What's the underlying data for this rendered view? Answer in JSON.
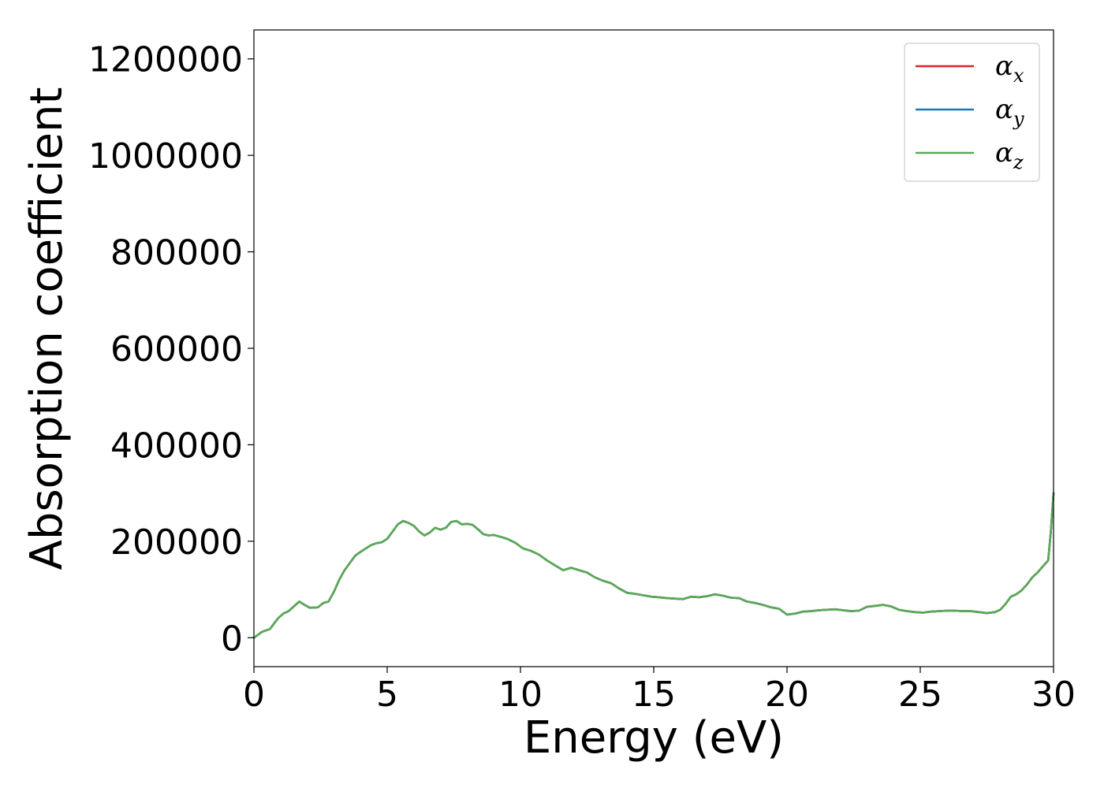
{
  "chart_data": {
    "type": "line",
    "xlabel": "Energy (eV)",
    "ylabel": "Absorption coefficient",
    "xlim": [
      0,
      30
    ],
    "ylim": [
      -60000,
      1260000
    ],
    "x_ticks": [
      0,
      5,
      10,
      15,
      20,
      25,
      30
    ],
    "x_tick_labels": [
      "0",
      "5",
      "10",
      "15",
      "20",
      "25",
      "30"
    ],
    "y_ticks": [
      0,
      200000,
      400000,
      600000,
      800000,
      1000000,
      1200000
    ],
    "y_tick_labels": [
      "0",
      "200000",
      "400000",
      "600000",
      "800000",
      "1000000",
      "1200000"
    ],
    "grid": false,
    "legend_position": "top-right",
    "x": [
      0,
      0.3,
      0.6,
      0.9,
      1.1,
      1.3,
      1.5,
      1.7,
      1.9,
      2.1,
      2.4,
      2.6,
      2.8,
      3.0,
      3.2,
      3.4,
      3.6,
      3.8,
      4.0,
      4.2,
      4.4,
      4.6,
      4.8,
      5.0,
      5.2,
      5.4,
      5.6,
      5.8,
      6.0,
      6.2,
      6.4,
      6.6,
      6.8,
      7.0,
      7.2,
      7.4,
      7.6,
      7.8,
      8.0,
      8.2,
      8.4,
      8.6,
      8.8,
      9.0,
      9.2,
      9.5,
      9.8,
      10.1,
      10.4,
      10.7,
      11.0,
      11.3,
      11.6,
      11.9,
      12.2,
      12.5,
      12.8,
      13.1,
      13.4,
      13.7,
      14.0,
      14.3,
      14.6,
      14.9,
      15.2,
      15.5,
      15.8,
      16.1,
      16.4,
      16.7,
      17.0,
      17.3,
      17.6,
      17.9,
      18.2,
      18.5,
      18.8,
      19.1,
      19.4,
      19.7,
      20.0,
      20.3,
      20.6,
      20.9,
      21.2,
      21.5,
      21.8,
      22.1,
      22.4,
      22.7,
      23.0,
      23.3,
      23.6,
      23.9,
      24.2,
      24.5,
      24.8,
      25.1,
      25.4,
      25.7,
      26.0,
      26.3,
      26.6,
      26.9,
      27.2,
      27.5,
      27.8,
      28.0,
      28.2,
      28.4,
      28.6,
      28.8,
      29.0,
      29.2,
      29.4,
      29.6,
      29.8,
      29.9,
      30.0
    ],
    "series": [
      {
        "name": "αx",
        "color": "#d62728",
        "y": [
          0,
          12000,
          18000,
          40000,
          50000,
          55000,
          65000,
          75000,
          68000,
          62000,
          63000,
          72000,
          75000,
          95000,
          120000,
          140000,
          155000,
          170000,
          178000,
          185000,
          192000,
          196000,
          198000,
          205000,
          220000,
          235000,
          242000,
          238000,
          232000,
          220000,
          212000,
          218000,
          228000,
          224000,
          228000,
          240000,
          242000,
          235000,
          236000,
          234000,
          225000,
          215000,
          212000,
          213000,
          210000,
          205000,
          197000,
          185000,
          180000,
          172000,
          160000,
          150000,
          140000,
          145000,
          140000,
          135000,
          125000,
          118000,
          113000,
          102000,
          93000,
          91000,
          88000,
          85000,
          84000,
          82000,
          81000,
          80000,
          85000,
          84000,
          86000,
          90000,
          87000,
          83000,
          82000,
          75000,
          72000,
          68000,
          63000,
          60000,
          48000,
          50000,
          54000,
          55000,
          57000,
          58000,
          59000,
          57000,
          55000,
          56000,
          64000,
          66000,
          68000,
          65000,
          58000,
          55000,
          53000,
          52000,
          54000,
          55000,
          56000,
          56000,
          55000,
          55000,
          53000,
          51000,
          53000,
          58000,
          70000,
          85000,
          90000,
          98000,
          110000,
          125000,
          135000,
          148000,
          160000,
          220000,
          300000
        ]
      },
      {
        "name": "αy",
        "color": "#1f77b4",
        "y": [
          0,
          12000,
          18000,
          40000,
          50000,
          55000,
          65000,
          75000,
          68000,
          62000,
          63000,
          72000,
          75000,
          95000,
          120000,
          140000,
          155000,
          170000,
          178000,
          185000,
          192000,
          196000,
          198000,
          205000,
          220000,
          235000,
          242000,
          238000,
          232000,
          220000,
          212000,
          218000,
          228000,
          224000,
          228000,
          240000,
          242000,
          235000,
          236000,
          234000,
          225000,
          215000,
          212000,
          213000,
          210000,
          205000,
          197000,
          185000,
          180000,
          172000,
          160000,
          150000,
          140000,
          145000,
          140000,
          135000,
          125000,
          118000,
          113000,
          102000,
          93000,
          91000,
          88000,
          85000,
          84000,
          82000,
          81000,
          80000,
          85000,
          84000,
          86000,
          90000,
          87000,
          83000,
          82000,
          75000,
          72000,
          68000,
          63000,
          60000,
          48000,
          50000,
          54000,
          55000,
          57000,
          58000,
          59000,
          57000,
          55000,
          56000,
          64000,
          66000,
          68000,
          65000,
          58000,
          55000,
          53000,
          52000,
          54000,
          55000,
          56000,
          56000,
          55000,
          55000,
          53000,
          51000,
          53000,
          58000,
          70000,
          85000,
          90000,
          98000,
          110000,
          125000,
          135000,
          148000,
          160000,
          220000,
          300000
        ]
      },
      {
        "name": "αz",
        "color": "#5aaa55",
        "y": [
          0,
          12000,
          18000,
          40000,
          50000,
          55000,
          65000,
          75000,
          68000,
          62000,
          63000,
          72000,
          75000,
          95000,
          120000,
          140000,
          155000,
          170000,
          178000,
          185000,
          192000,
          196000,
          198000,
          205000,
          220000,
          235000,
          242000,
          238000,
          232000,
          220000,
          212000,
          218000,
          228000,
          224000,
          228000,
          240000,
          242000,
          235000,
          236000,
          234000,
          225000,
          215000,
          212000,
          213000,
          210000,
          205000,
          197000,
          185000,
          180000,
          172000,
          160000,
          150000,
          140000,
          145000,
          140000,
          135000,
          125000,
          118000,
          113000,
          102000,
          93000,
          91000,
          88000,
          85000,
          84000,
          82000,
          81000,
          80000,
          85000,
          84000,
          86000,
          90000,
          87000,
          83000,
          82000,
          75000,
          72000,
          68000,
          63000,
          60000,
          48000,
          50000,
          54000,
          55000,
          57000,
          58000,
          59000,
          57000,
          55000,
          56000,
          64000,
          66000,
          68000,
          65000,
          58000,
          55000,
          53000,
          52000,
          54000,
          55000,
          56000,
          56000,
          55000,
          55000,
          53000,
          51000,
          53000,
          58000,
          70000,
          85000,
          90000,
          98000,
          110000,
          125000,
          135000,
          148000,
          160000,
          220000,
          300000
        ]
      }
    ],
    "legend": [
      {
        "symbol": "α",
        "sub": "x",
        "color": "#d62728"
      },
      {
        "symbol": "α",
        "sub": "y",
        "color": "#1f77b4"
      },
      {
        "symbol": "α",
        "sub": "z",
        "color": "#5aaa55"
      }
    ]
  }
}
